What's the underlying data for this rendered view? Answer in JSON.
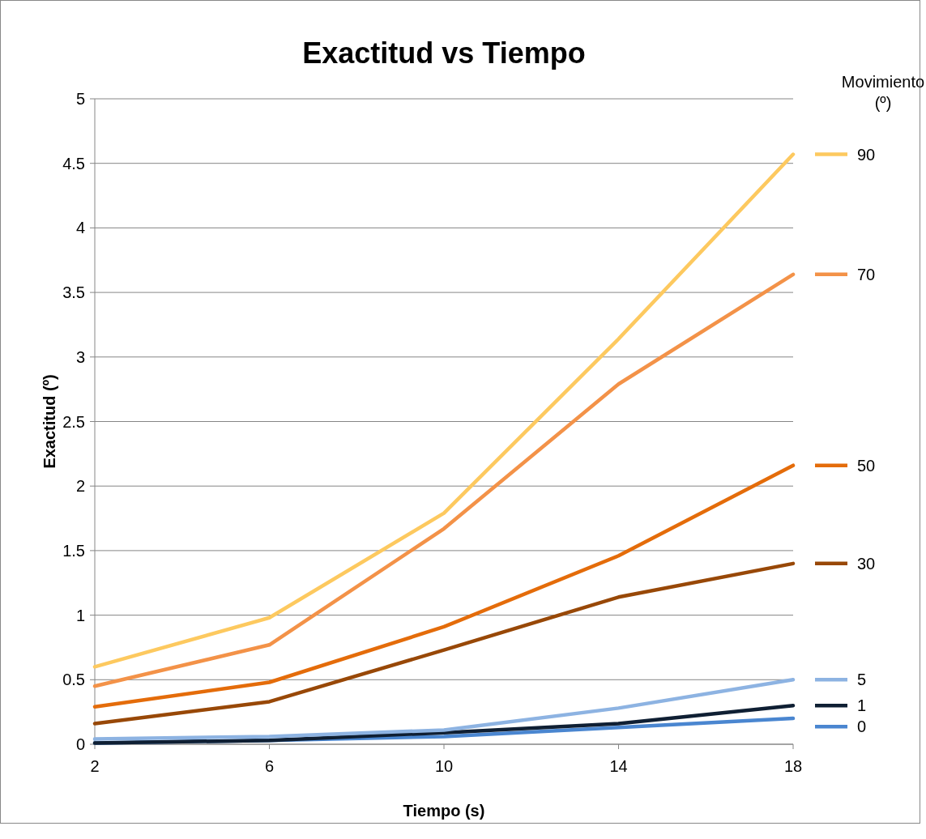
{
  "chart_data": {
    "type": "line",
    "title": "Exactitud vs Tiempo",
    "xlabel": "Tiempo (s)",
    "ylabel": "Exactitud (º)",
    "legend_title": "Movimiento (º)",
    "x": [
      2,
      6,
      10,
      14,
      18
    ],
    "xlim": [
      2,
      18
    ],
    "xticks": [
      2,
      6,
      10,
      14,
      18
    ],
    "ylim": [
      0,
      5
    ],
    "yticks": [
      0,
      0.5,
      1,
      1.5,
      2,
      2.5,
      3,
      3.5,
      4,
      4.5,
      5
    ],
    "grid": "y",
    "legend": "right",
    "marker": "none",
    "line_style": "solid",
    "series": [
      {
        "name": "90",
        "color": "#fdc95f",
        "values": [
          0.6,
          0.98,
          1.79,
          3.14,
          4.57
        ]
      },
      {
        "name": "70",
        "color": "#f39248",
        "values": [
          0.45,
          0.77,
          1.67,
          2.79,
          3.64
        ]
      },
      {
        "name": "50",
        "color": "#e46c0a",
        "values": [
          0.29,
          0.48,
          0.91,
          1.46,
          2.16
        ]
      },
      {
        "name": "30",
        "color": "#984807",
        "values": [
          0.16,
          0.33,
          0.73,
          1.14,
          1.4
        ]
      },
      {
        "name": "5",
        "color": "#8db3e2",
        "values": [
          0.04,
          0.06,
          0.11,
          0.28,
          0.5
        ]
      },
      {
        "name": "1",
        "color": "#0f1f33",
        "values": [
          0.01,
          0.03,
          0.09,
          0.16,
          0.3
        ]
      },
      {
        "name": "0",
        "color": "#4a86d0",
        "values": [
          0.01,
          0.03,
          0.06,
          0.13,
          0.2
        ]
      }
    ]
  }
}
